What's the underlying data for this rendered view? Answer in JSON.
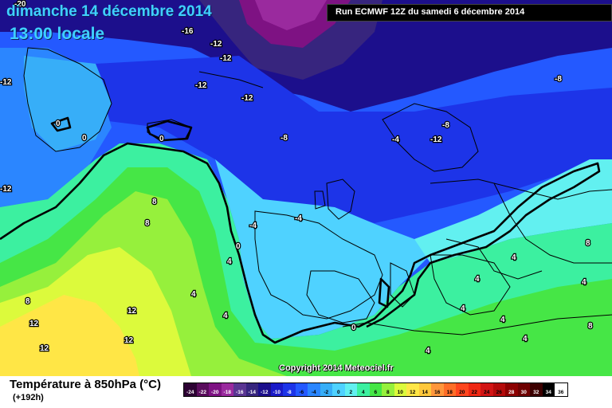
{
  "header": {
    "date": "dimanche 14 décembre 2014",
    "time": "13:00 locale",
    "run": "Run ECMWF 12Z du samedi 6 décembre 2014"
  },
  "copyright": "Copyright 2014 Meteociel.fr",
  "legend": {
    "title": "Température à 850hPa (°C)",
    "range": "(+192h)",
    "scale": [
      {
        "label": "-24",
        "color": "#2d0233"
      },
      {
        "label": "-22",
        "color": "#5a0c5c"
      },
      {
        "label": "-20",
        "color": "#7e1283"
      },
      {
        "label": "-18",
        "color": "#9a2a9e"
      },
      {
        "label": "-16",
        "color": "#5a3592"
      },
      {
        "label": "-14",
        "color": "#37257e"
      },
      {
        "label": "-12",
        "color": "#1c0f8c"
      },
      {
        "label": "-10",
        "color": "#1a1ac8"
      },
      {
        "label": "-8",
        "color": "#1d34e8"
      },
      {
        "label": "-6",
        "color": "#2459ff"
      },
      {
        "label": "-4",
        "color": "#2b86ff"
      },
      {
        "label": "-2",
        "color": "#37aef8"
      },
      {
        "label": "0",
        "color": "#4fd2ff"
      },
      {
        "label": "2",
        "color": "#62f0f0"
      },
      {
        "label": "4",
        "color": "#3cf0a0"
      },
      {
        "label": "6",
        "color": "#46e646"
      },
      {
        "label": "8",
        "color": "#96f03c"
      },
      {
        "label": "10",
        "color": "#dcfa3c"
      },
      {
        "label": "12",
        "color": "#ffe646"
      },
      {
        "label": "14",
        "color": "#ffc83c"
      },
      {
        "label": "16",
        "color": "#ff963c"
      },
      {
        "label": "18",
        "color": "#ff6e28"
      },
      {
        "label": "20",
        "color": "#ff461e"
      },
      {
        "label": "22",
        "color": "#f02814"
      },
      {
        "label": "24",
        "color": "#d21414"
      },
      {
        "label": "26",
        "color": "#b40a0a"
      },
      {
        "label": "28",
        "color": "#8c0000"
      },
      {
        "label": "30",
        "color": "#6e0000"
      },
      {
        "label": "32",
        "color": "#3c0000"
      },
      {
        "label": "34",
        "color": "#000000"
      },
      {
        "label": "36",
        "color": "#ffffff"
      }
    ]
  },
  "contour_labels": [
    {
      "text": "-20"
    },
    {
      "text": "-16"
    },
    {
      "text": "-12"
    },
    {
      "text": "-12"
    },
    {
      "text": "-12"
    },
    {
      "text": "-12"
    },
    {
      "text": "-12"
    },
    {
      "text": "-8"
    },
    {
      "text": "-8"
    },
    {
      "text": "-4"
    },
    {
      "text": "-12"
    },
    {
      "text": "-4"
    },
    {
      "text": "-4"
    },
    {
      "text": "-12"
    },
    {
      "text": "0"
    },
    {
      "text": "0"
    },
    {
      "text": "0"
    },
    {
      "text": "8"
    },
    {
      "text": "8"
    },
    {
      "text": "4"
    },
    {
      "text": "0"
    },
    {
      "text": "8"
    },
    {
      "text": "12"
    },
    {
      "text": "12"
    },
    {
      "text": "4"
    },
    {
      "text": "12"
    },
    {
      "text": "12"
    },
    {
      "text": "0"
    },
    {
      "text": "4"
    },
    {
      "text": "4"
    },
    {
      "text": "4"
    },
    {
      "text": "8"
    },
    {
      "text": "4"
    },
    {
      "text": "4"
    },
    {
      "text": "4"
    },
    {
      "text": "4"
    },
    {
      "text": "4"
    },
    {
      "text": "8"
    },
    {
      "text": "-8"
    }
  ],
  "colors": {
    "title_text": "#3fd0ff",
    "zero_isotherm": "#000000",
    "coastline": "#000000"
  }
}
